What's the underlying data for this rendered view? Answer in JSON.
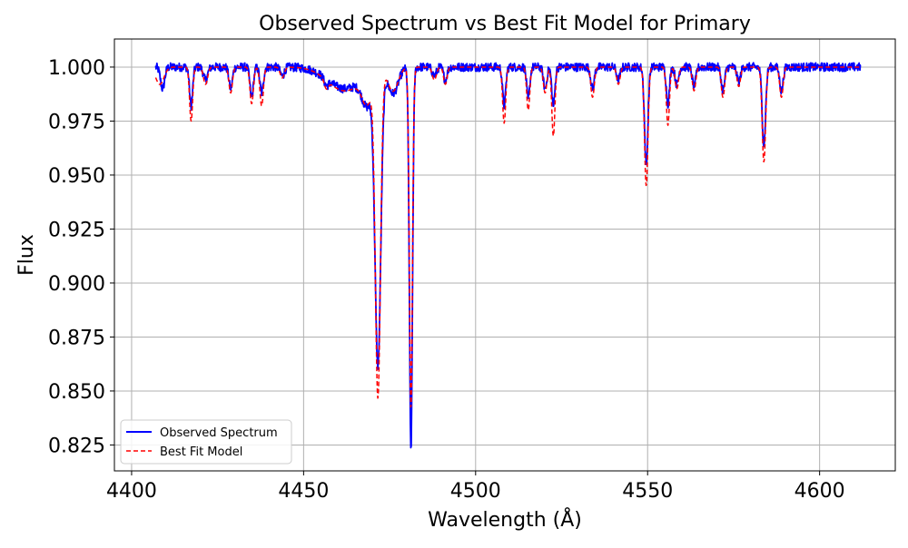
{
  "chart_data": {
    "type": "line",
    "title": "Observed Spectrum vs Best Fit Model for Primary",
    "xlabel": "Wavelength (Å)",
    "ylabel": "Flux",
    "xlim": [
      4395,
      4622
    ],
    "ylim": [
      0.813,
      1.013
    ],
    "xticks": [
      4400,
      4450,
      4500,
      4550,
      4600
    ],
    "yticks": [
      0.825,
      0.85,
      0.875,
      0.9,
      0.925,
      0.95,
      0.975,
      1.0
    ],
    "ytick_labels": [
      "0.825",
      "0.850",
      "0.875",
      "0.900",
      "0.925",
      "0.950",
      "0.975",
      "1.000"
    ],
    "xtick_labels": [
      "4400",
      "4450",
      "4500",
      "4550",
      "4600"
    ],
    "grid": true,
    "legend": {
      "position": "lower-left",
      "entries": [
        "Observed Spectrum",
        "Best Fit Model"
      ]
    },
    "x_range": [
      4407,
      4612
    ],
    "continuum": 1.0,
    "series": [
      {
        "name": "Observed Spectrum",
        "color": "#0000ff",
        "style": "solid",
        "lines": [
          {
            "center": 4409.0,
            "depth": 0.01,
            "width": 0.6
          },
          {
            "center": 4417.3,
            "depth": 0.018,
            "width": 0.45
          },
          {
            "center": 4421.5,
            "depth": 0.006,
            "width": 0.6
          },
          {
            "center": 4428.8,
            "depth": 0.01,
            "width": 0.5
          },
          {
            "center": 4434.9,
            "depth": 0.014,
            "width": 0.5
          },
          {
            "center": 4437.8,
            "depth": 0.012,
            "width": 0.5
          },
          {
            "center": 4443.8,
            "depth": 0.004,
            "width": 0.6
          },
          {
            "center": 4456.6,
            "depth": 0.003,
            "width": 0.6
          },
          {
            "center": 4462.0,
            "depth": 0.01,
            "width": 5.0
          },
          {
            "center": 4468.5,
            "depth": 0.014,
            "width": 1.5
          },
          {
            "center": 4471.6,
            "depth": 0.135,
            "width": 0.85
          },
          {
            "center": 4476.0,
            "depth": 0.012,
            "width": 1.5
          },
          {
            "center": 4481.2,
            "depth": 0.177,
            "width": 0.45
          },
          {
            "center": 4488.0,
            "depth": 0.004,
            "width": 0.6
          },
          {
            "center": 4491.2,
            "depth": 0.006,
            "width": 0.5
          },
          {
            "center": 4508.3,
            "depth": 0.018,
            "width": 0.45
          },
          {
            "center": 4515.3,
            "depth": 0.015,
            "width": 0.45
          },
          {
            "center": 4520.2,
            "depth": 0.01,
            "width": 0.5
          },
          {
            "center": 4522.6,
            "depth": 0.018,
            "width": 0.45
          },
          {
            "center": 4534.0,
            "depth": 0.01,
            "width": 0.5
          },
          {
            "center": 4541.5,
            "depth": 0.006,
            "width": 0.5
          },
          {
            "center": 4549.6,
            "depth": 0.045,
            "width": 0.5
          },
          {
            "center": 4555.9,
            "depth": 0.017,
            "width": 0.45
          },
          {
            "center": 4558.5,
            "depth": 0.008,
            "width": 0.5
          },
          {
            "center": 4563.5,
            "depth": 0.009,
            "width": 0.5
          },
          {
            "center": 4571.9,
            "depth": 0.011,
            "width": 0.5
          },
          {
            "center": 4576.5,
            "depth": 0.007,
            "width": 0.5
          },
          {
            "center": 4583.8,
            "depth": 0.036,
            "width": 0.5
          },
          {
            "center": 4588.9,
            "depth": 0.011,
            "width": 0.5
          }
        ],
        "noise": 0.002
      },
      {
        "name": "Best Fit Model",
        "color": "#ff0000",
        "style": "dashed",
        "lines": [
          {
            "center": 4408.2,
            "depth": 0.008,
            "width": 1.2
          },
          {
            "center": 4417.3,
            "depth": 0.025,
            "width": 0.45
          },
          {
            "center": 4421.5,
            "depth": 0.008,
            "width": 0.6
          },
          {
            "center": 4428.8,
            "depth": 0.012,
            "width": 0.5
          },
          {
            "center": 4434.9,
            "depth": 0.017,
            "width": 0.5
          },
          {
            "center": 4437.8,
            "depth": 0.018,
            "width": 0.5
          },
          {
            "center": 4443.8,
            "depth": 0.005,
            "width": 0.6
          },
          {
            "center": 4456.6,
            "depth": 0.004,
            "width": 0.6
          },
          {
            "center": 4462.0,
            "depth": 0.011,
            "width": 5.0
          },
          {
            "center": 4468.5,
            "depth": 0.013,
            "width": 1.5
          },
          {
            "center": 4471.6,
            "depth": 0.15,
            "width": 0.75
          },
          {
            "center": 4476.0,
            "depth": 0.011,
            "width": 1.5
          },
          {
            "center": 4481.2,
            "depth": 0.158,
            "width": 0.45
          },
          {
            "center": 4488.0,
            "depth": 0.006,
            "width": 0.6
          },
          {
            "center": 4491.2,
            "depth": 0.008,
            "width": 0.5
          },
          {
            "center": 4508.3,
            "depth": 0.026,
            "width": 0.45
          },
          {
            "center": 4515.3,
            "depth": 0.02,
            "width": 0.45
          },
          {
            "center": 4520.2,
            "depth": 0.012,
            "width": 0.5
          },
          {
            "center": 4522.6,
            "depth": 0.032,
            "width": 0.45
          },
          {
            "center": 4534.0,
            "depth": 0.014,
            "width": 0.5
          },
          {
            "center": 4541.5,
            "depth": 0.008,
            "width": 0.5
          },
          {
            "center": 4549.6,
            "depth": 0.055,
            "width": 0.5
          },
          {
            "center": 4555.9,
            "depth": 0.027,
            "width": 0.45
          },
          {
            "center": 4558.5,
            "depth": 0.01,
            "width": 0.5
          },
          {
            "center": 4563.5,
            "depth": 0.011,
            "width": 0.5
          },
          {
            "center": 4571.9,
            "depth": 0.014,
            "width": 0.5
          },
          {
            "center": 4576.5,
            "depth": 0.009,
            "width": 0.5
          },
          {
            "center": 4583.8,
            "depth": 0.044,
            "width": 0.5
          },
          {
            "center": 4588.9,
            "depth": 0.014,
            "width": 0.5
          }
        ],
        "noise": 0.0
      }
    ],
    "min_points": [
      {
        "series": "Observed Spectrum",
        "x": 4481.2,
        "y": 0.821
      },
      {
        "series": "Observed Spectrum",
        "x": 4471.6,
        "y": 0.86
      },
      {
        "series": "Best Fit Model",
        "x": 4471.6,
        "y": 0.846
      },
      {
        "series": "Best Fit Model",
        "x": 4481.2,
        "y": 0.84
      }
    ]
  }
}
